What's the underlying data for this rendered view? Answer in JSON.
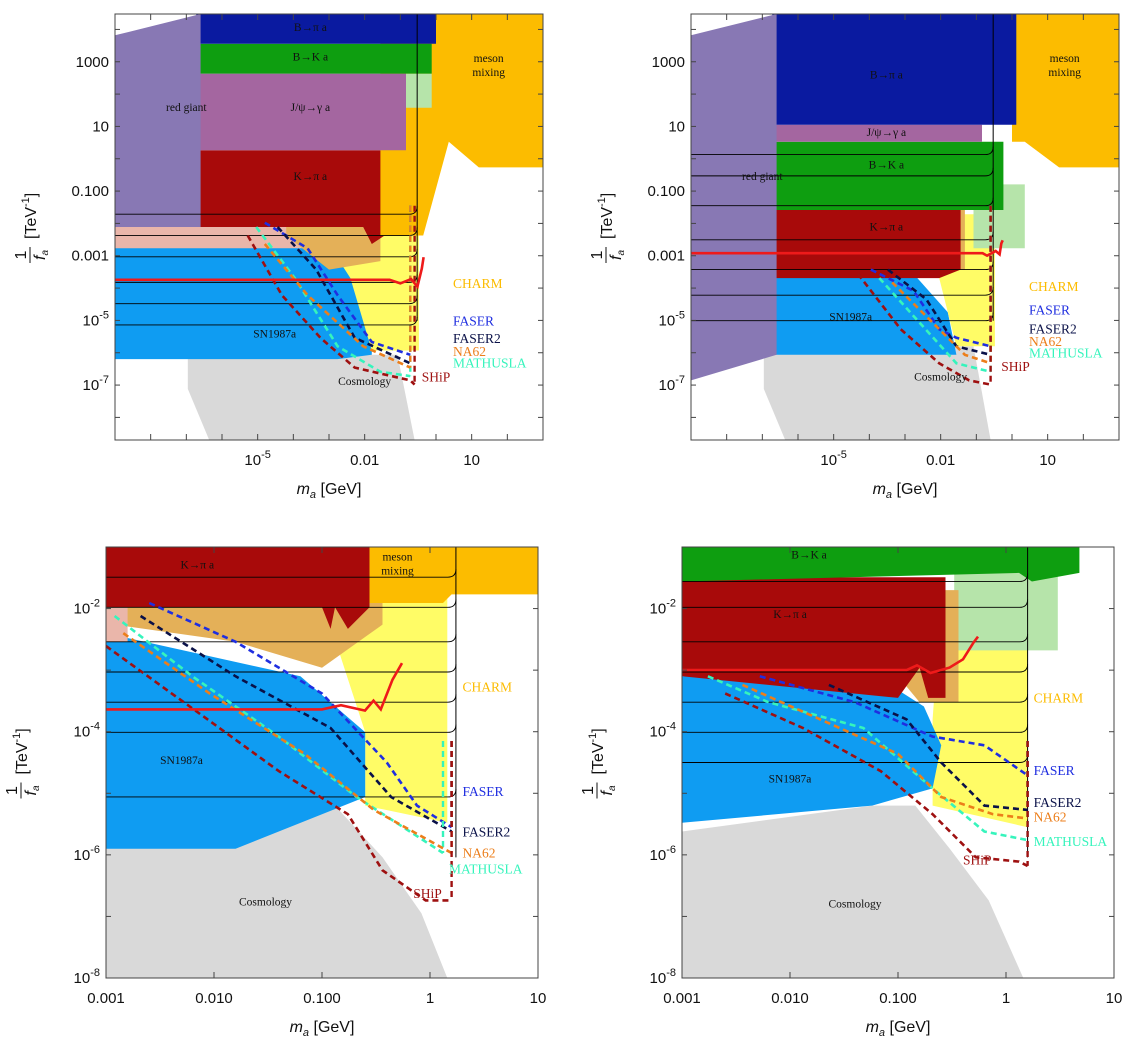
{
  "colors": {
    "red_giant": "#8878b4",
    "b_pi": "#0a1aa0",
    "b_k": "#0e9e10",
    "jpsi": "#a466a0",
    "k_pi": "#a80a0a",
    "meson_mixing": "#fcbc00",
    "sn1987a": "#0f9cf2",
    "cosmology": "#d9d9d9",
    "charm": "#fffc66",
    "tan": "#e4b058",
    "pink": "#eab6aa",
    "light_green": "#b6e4aa",
    "faser": "#1f2ee0",
    "faser2": "#0a1148",
    "na62": "#ec7e1a",
    "mathusla": "#36f4bc",
    "ship": "#9e1010",
    "bound_line": "#ee1a1a"
  },
  "chart_data": [
    {
      "type": "exclusion-plot",
      "panel": "top-left",
      "x_scale": "log",
      "y_scale": "log",
      "xlim": [
        1e-09,
        1000
      ],
      "ylim": [
        2e-09,
        30000
      ],
      "xlabel": "m_a [GeV]",
      "ylabel": "1/f_a [TeV^-1]",
      "x_ticks": [
        {
          "v": 1e-05,
          "label": "10^-5"
        },
        {
          "v": 0.01,
          "label": "0.01"
        },
        {
          "v": 10,
          "label": "10"
        }
      ],
      "y_ticks": [
        {
          "v": 1000,
          "label": "1000"
        },
        {
          "v": 10,
          "label": "10"
        },
        {
          "v": 0.1,
          "label": "0.100"
        },
        {
          "v": 0.001,
          "label": "0.001"
        },
        {
          "v": 1e-05,
          "label": "10^-5"
        },
        {
          "v": 1e-07,
          "label": "10^-7"
        }
      ],
      "regions": [
        {
          "label": "red giant",
          "label2": "",
          "at": [
            1e-07,
            30
          ]
        },
        {
          "label": "B→π a",
          "label2": "",
          "at": [
            0.0003,
            9000
          ]
        },
        {
          "label": "B→K a",
          "label2": "",
          "at": [
            0.0003,
            1100
          ]
        },
        {
          "label": "J/ψ→γ a",
          "label2": "",
          "at": [
            0.0003,
            30
          ]
        },
        {
          "label": "K→π a",
          "label2": "",
          "at": [
            0.0003,
            0.22
          ]
        },
        {
          "label": "meson",
          "label2": "mixing",
          "at": [
            30,
            1000
          ]
        },
        {
          "label": "SN1987a",
          "label2": "",
          "at": [
            3e-05,
            3e-06
          ]
        },
        {
          "label": "Cosmology",
          "label2": "",
          "at": [
            0.01,
            1e-07
          ]
        }
      ],
      "detectors": [
        {
          "name": "CHARM",
          "at": [
            3,
            0.0001
          ]
        },
        {
          "name": "FASER",
          "at": [
            3,
            7e-06
          ]
        },
        {
          "name": "FASER2",
          "at": [
            3,
            2e-06
          ]
        },
        {
          "name": "NA62",
          "at": [
            3,
            8e-07
          ]
        },
        {
          "name": "MATHUSLA",
          "at": [
            3,
            3.5e-07
          ]
        },
        {
          "name": "SHiP",
          "at": [
            0.4,
            1.3e-07
          ]
        }
      ],
      "bound_curve": [
        [
          1e-09,
          0.00018
        ],
        [
          0.05,
          0.00018
        ],
        [
          0.1,
          0.00014
        ],
        [
          0.2,
          0.00019
        ],
        [
          0.3,
          0.00011
        ],
        [
          0.4,
          0.0004
        ],
        [
          0.45,
          0.0009
        ]
      ]
    },
    {
      "type": "exclusion-plot",
      "panel": "top-right",
      "x_scale": "log",
      "y_scale": "log",
      "xlim": [
        1e-09,
        1000
      ],
      "ylim": [
        2e-09,
        30000
      ],
      "xlabel": "m_a [GeV]",
      "ylabel": "1/f_a [TeV^-1]",
      "x_ticks": [
        {
          "v": 1e-05,
          "label": "10^-5"
        },
        {
          "v": 0.01,
          "label": "0.01"
        },
        {
          "v": 10,
          "label": "10"
        }
      ],
      "y_ticks": [
        {
          "v": 1000,
          "label": "1000"
        },
        {
          "v": 10,
          "label": "10"
        },
        {
          "v": 0.1,
          "label": "0.100"
        },
        {
          "v": 0.001,
          "label": "0.001"
        },
        {
          "v": 1e-05,
          "label": "10^-5"
        },
        {
          "v": 1e-07,
          "label": "10^-7"
        }
      ],
      "regions": [
        {
          "label": "red giant",
          "label2": "",
          "at": [
            1e-07,
            0.22
          ]
        },
        {
          "label": "B→π a",
          "label2": "",
          "at": [
            0.0003,
            300
          ]
        },
        {
          "label": "J/ψ→γ a",
          "label2": "",
          "at": [
            0.0003,
            5
          ]
        },
        {
          "label": "B→K a",
          "label2": "",
          "at": [
            0.0003,
            0.5
          ]
        },
        {
          "label": "K→π a",
          "label2": "",
          "at": [
            0.0003,
            0.006
          ]
        },
        {
          "label": "meson",
          "label2": "mixing",
          "at": [
            30,
            1000
          ]
        },
        {
          "label": "SN1987a",
          "label2": "",
          "at": [
            3e-05,
            1e-05
          ]
        },
        {
          "label": "Cosmology",
          "label2": "",
          "at": [
            0.01,
            1.4e-07
          ]
        }
      ],
      "detectors": [
        {
          "name": "CHARM",
          "at": [
            3,
            8e-05
          ]
        },
        {
          "name": "FASER",
          "at": [
            3,
            1.5e-05
          ]
        },
        {
          "name": "FASER2",
          "at": [
            3,
            4e-06
          ]
        },
        {
          "name": "NA62",
          "at": [
            3,
            1.6e-06
          ]
        },
        {
          "name": "MATHUSLA",
          "at": [
            3,
            7e-07
          ]
        },
        {
          "name": "SHiP",
          "at": [
            0.5,
            2.7e-07
          ]
        }
      ],
      "bound_curve": [
        [
          1e-09,
          0.0012
        ],
        [
          0.15,
          0.0012
        ],
        [
          0.2,
          0.001
        ],
        [
          0.35,
          0.0014
        ],
        [
          0.45,
          0.0011
        ],
        [
          0.5,
          0.0024
        ],
        [
          0.55,
          0.003
        ]
      ]
    },
    {
      "type": "exclusion-plot",
      "panel": "bottom-left",
      "x_scale": "log",
      "y_scale": "log",
      "xlim": [
        0.001,
        10
      ],
      "ylim": [
        1e-08,
        0.1
      ],
      "xlabel": "m_a [GeV]",
      "ylabel": "1/f_a [TeV^-1]",
      "x_ticks": [
        {
          "v": 0.001,
          "label": "0.001"
        },
        {
          "v": 0.01,
          "label": "0.010"
        },
        {
          "v": 0.1,
          "label": "0.100"
        },
        {
          "v": 1,
          "label": "1"
        },
        {
          "v": 10,
          "label": "10"
        }
      ],
      "y_ticks": [
        {
          "v": 0.01,
          "label": "10^-2"
        },
        {
          "v": 0.0001,
          "label": "10^-4"
        },
        {
          "v": 1e-06,
          "label": "10^-6"
        },
        {
          "v": 1e-08,
          "label": "10^-8"
        }
      ],
      "regions": [
        {
          "label": "K→π a",
          "label2": "",
          "at": [
            0.007,
            0.045
          ]
        },
        {
          "label": "meson",
          "label2": "mixing",
          "at": [
            0.5,
            0.06
          ]
        },
        {
          "label": "SN1987a",
          "label2": "",
          "at": [
            0.005,
            3e-05
          ]
        },
        {
          "label": "Cosmology",
          "label2": "",
          "at": [
            0.03,
            1.5e-07
          ]
        }
      ],
      "detectors": [
        {
          "name": "CHARM",
          "at": [
            2,
            0.00045
          ]
        },
        {
          "name": "FASER",
          "at": [
            2,
            9e-06
          ]
        },
        {
          "name": "FASER2",
          "at": [
            2,
            2e-06
          ]
        },
        {
          "name": "NA62",
          "at": [
            2,
            9e-07
          ]
        },
        {
          "name": "MATHUSLA",
          "at": [
            1.5,
            5e-07
          ]
        },
        {
          "name": "SHiP",
          "at": [
            0.7,
            2e-07
          ]
        }
      ],
      "bound_curve": [
        [
          0.001,
          0.00023
        ],
        [
          0.1,
          0.00023
        ],
        [
          0.15,
          0.00027
        ],
        [
          0.25,
          0.00022
        ],
        [
          0.3,
          0.00032
        ],
        [
          0.35,
          0.00023
        ],
        [
          0.45,
          0.0007
        ],
        [
          0.55,
          0.0013
        ]
      ]
    },
    {
      "type": "exclusion-plot",
      "panel": "bottom-right",
      "x_scale": "log",
      "y_scale": "log",
      "xlim": [
        0.001,
        10
      ],
      "ylim": [
        1e-08,
        0.1
      ],
      "xlabel": "m_a [GeV]",
      "ylabel": "1/f_a [TeV^-1]",
      "x_ticks": [
        {
          "v": 0.001,
          "label": "0.001"
        },
        {
          "v": 0.01,
          "label": "0.010"
        },
        {
          "v": 0.1,
          "label": "0.100"
        },
        {
          "v": 1,
          "label": "1"
        },
        {
          "v": 10,
          "label": "10"
        }
      ],
      "y_ticks": [
        {
          "v": 0.01,
          "label": "10^-2"
        },
        {
          "v": 0.0001,
          "label": "10^-4"
        },
        {
          "v": 1e-06,
          "label": "10^-6"
        },
        {
          "v": 1e-08,
          "label": "10^-8"
        }
      ],
      "regions": [
        {
          "label": "B→K a",
          "label2": "",
          "at": [
            0.015,
            0.065
          ]
        },
        {
          "label": "K→π a",
          "label2": "",
          "at": [
            0.01,
            0.007
          ]
        },
        {
          "label": "SN1987a",
          "label2": "",
          "at": [
            0.01,
            1.5e-05
          ]
        },
        {
          "label": "Cosmology",
          "label2": "",
          "at": [
            0.04,
            1.4e-07
          ]
        }
      ],
      "detectors": [
        {
          "name": "CHARM",
          "at": [
            1.8,
            0.0003
          ]
        },
        {
          "name": "FASER",
          "at": [
            1.8,
            2e-05
          ]
        },
        {
          "name": "FASER2",
          "at": [
            1.8,
            6e-06
          ]
        },
        {
          "name": "NA62",
          "at": [
            1.8,
            3.5e-06
          ]
        },
        {
          "name": "MATHUSLA",
          "at": [
            1.8,
            1.4e-06
          ]
        },
        {
          "name": "SHiP",
          "at": [
            0.4,
            7e-07
          ]
        }
      ],
      "bound_curve": [
        [
          0.001,
          0.001
        ],
        [
          0.12,
          0.001
        ],
        [
          0.15,
          0.0012
        ],
        [
          0.2,
          0.0009
        ],
        [
          0.3,
          0.0011
        ],
        [
          0.4,
          0.0015
        ],
        [
          0.5,
          0.0028
        ],
        [
          0.55,
          0.0035
        ]
      ]
    }
  ]
}
